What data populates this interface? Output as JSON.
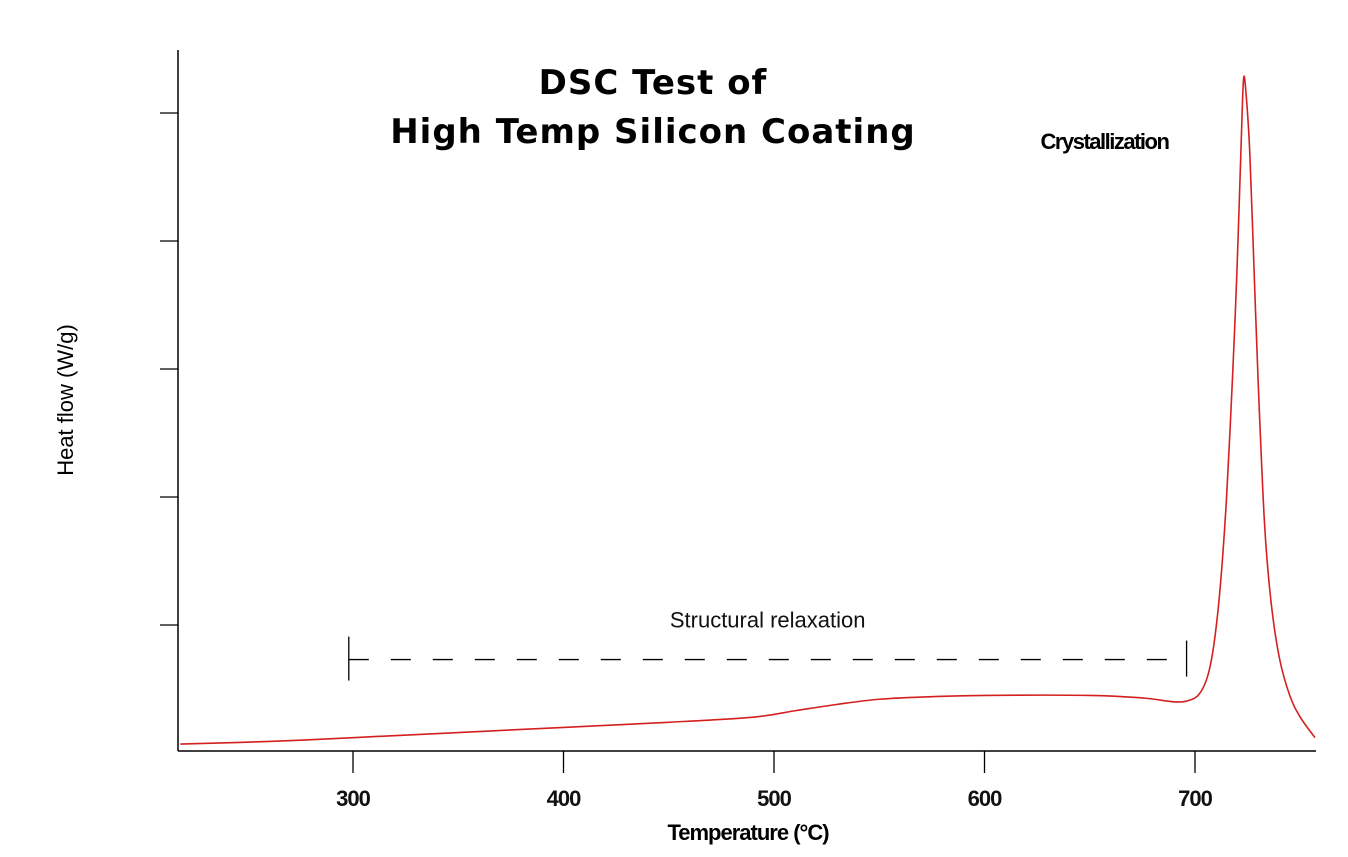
{
  "chart_data": {
    "type": "line",
    "title": [
      "DSC Test of",
      "High Temp Silicon Coating"
    ],
    "xlabel": "Temperature (°C)",
    "ylabel": "Heat flow (W/g)",
    "xlim": [
      218,
      757
    ],
    "ylim": [
      0,
      5.5
    ],
    "xticks": [
      300,
      400,
      500,
      600,
      700
    ],
    "xtick_labels": [
      "300",
      "400",
      "500",
      "600",
      "700"
    ],
    "yticks": [
      1,
      2,
      3,
      4,
      5
    ],
    "ytick_labels_shown": false,
    "grid": false,
    "series": [
      {
        "color": "#d42020",
        "x": [
          218,
          260,
          300,
          350,
          400,
          450,
          490,
          510,
          530,
          550,
          575,
          600,
          650,
          675,
          690,
          697,
          702,
          706,
          709,
          712,
          715,
          718,
          720,
          722,
          723,
          724,
          726,
          728,
          730,
          733,
          736,
          740,
          745,
          750,
          757
        ],
        "y": [
          0.07,
          0.09,
          0.12,
          0.16,
          0.2,
          0.24,
          0.28,
          0.33,
          0.38,
          0.42,
          0.44,
          0.45,
          0.45,
          0.43,
          0.4,
          0.41,
          0.46,
          0.6,
          0.85,
          1.3,
          2.0,
          3.0,
          3.8,
          4.8,
          5.25,
          5.2,
          4.7,
          3.8,
          2.9,
          1.8,
          1.2,
          0.75,
          0.45,
          0.28,
          0.12
        ]
      }
    ],
    "annotations": [
      {
        "text": "Crystallization",
        "x": 657,
        "y": 4.72
      },
      {
        "text": "Structural relaxation",
        "x": 497,
        "y": 0.98,
        "range": [
          298,
          696
        ],
        "bracket_y": 0.73
      }
    ]
  }
}
